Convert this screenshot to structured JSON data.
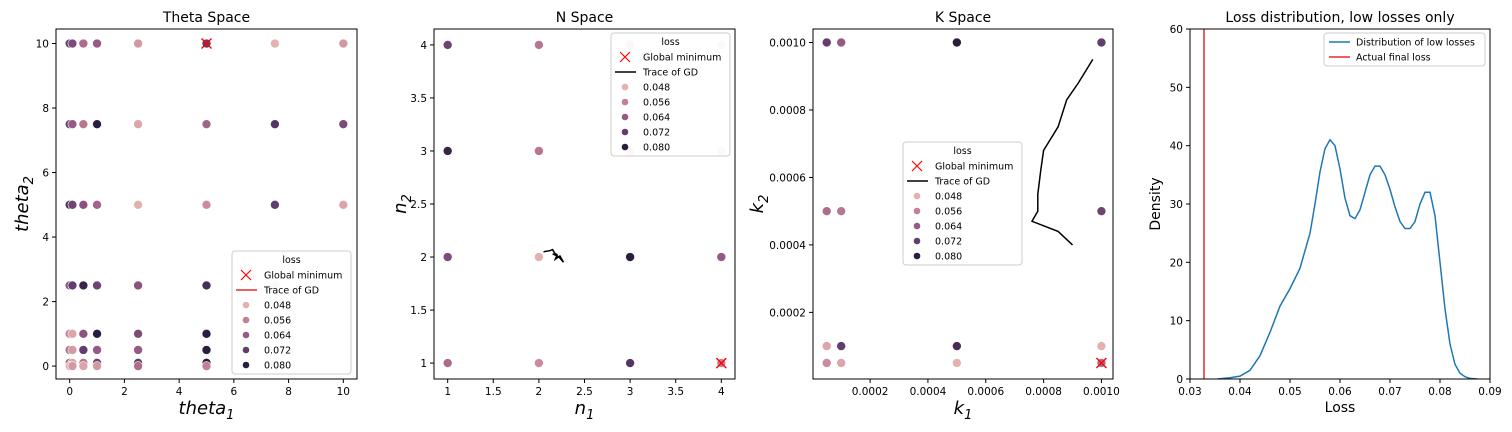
{
  "colors": {
    "axis": "#000000",
    "gd_trace_theta": "#e32b2b",
    "gd_trace": "#000000",
    "global_minimum": "#ff0000",
    "kde_line": "#1f77b4",
    "final_loss_line": "#e32b2b",
    "loss_palette": [
      "#e3b2b0",
      "#c27f95",
      "#955a85",
      "#613e6b",
      "#2b1d3d"
    ]
  },
  "chart_data": [
    {
      "id": "theta",
      "type": "scatter",
      "title": "Theta Space",
      "xlabel": "theta_1",
      "ylabel": "theta_2",
      "xlim": [
        -0.5,
        10.5
      ],
      "ylim": [
        -0.4,
        10.45
      ],
      "xticks": [
        0,
        2,
        4,
        6,
        8,
        10
      ],
      "yticks": [
        0,
        2,
        4,
        6,
        8,
        10
      ],
      "legend": {
        "title": "loss",
        "position": "lower right",
        "entries": [
          "Global minimum",
          "Trace of GD",
          "0.048",
          "0.056",
          "0.064",
          "0.072",
          "0.080"
        ],
        "line_color": "gd_trace_theta"
      },
      "global_minimum": [
        5,
        10
      ],
      "trace": [],
      "points": [
        [
          0,
          10,
          0.072
        ],
        [
          0.1,
          10,
          0.068
        ],
        [
          0.5,
          10,
          0.06
        ],
        [
          1,
          10,
          0.064
        ],
        [
          2.5,
          10,
          0.052
        ],
        [
          5,
          10,
          0.072
        ],
        [
          7.5,
          10,
          0.048
        ],
        [
          10,
          10,
          0.052
        ],
        [
          0,
          7.5,
          0.072
        ],
        [
          0.1,
          7.5,
          0.064
        ],
        [
          0.5,
          7.5,
          0.058
        ],
        [
          1,
          7.5,
          0.08
        ],
        [
          2.5,
          7.5,
          0.05
        ],
        [
          5,
          7.5,
          0.062
        ],
        [
          7.5,
          7.5,
          0.074
        ],
        [
          10,
          7.5,
          0.068
        ],
        [
          0,
          5,
          0.076
        ],
        [
          0.1,
          5,
          0.07
        ],
        [
          0.5,
          5,
          0.066
        ],
        [
          1,
          5,
          0.062
        ],
        [
          2.5,
          5,
          0.048
        ],
        [
          5,
          5,
          0.054
        ],
        [
          7.5,
          5,
          0.072
        ],
        [
          10,
          5,
          0.05
        ],
        [
          0,
          2.5,
          0.066
        ],
        [
          0.1,
          2.5,
          0.072
        ],
        [
          0.5,
          2.5,
          0.078
        ],
        [
          1,
          2.5,
          0.07
        ],
        [
          2.5,
          2.5,
          0.066
        ],
        [
          5,
          2.5,
          0.076
        ],
        [
          7.5,
          2.5,
          0.048
        ],
        [
          0,
          1,
          0.056
        ],
        [
          0.1,
          1,
          0.05
        ],
        [
          0.5,
          1,
          0.066
        ],
        [
          1,
          1,
          0.08
        ],
        [
          2.5,
          1,
          0.068
        ],
        [
          5,
          1,
          0.08
        ],
        [
          7.5,
          1,
          0.05
        ],
        [
          0,
          0.5,
          0.06
        ],
        [
          0.1,
          0.5,
          0.052
        ],
        [
          0.5,
          0.5,
          0.072
        ],
        [
          1,
          0.5,
          0.064
        ],
        [
          2.5,
          0.5,
          0.064
        ],
        [
          5,
          0.5,
          0.08
        ],
        [
          0,
          0.1,
          0.062
        ],
        [
          0.1,
          0.1,
          0.05
        ],
        [
          0.5,
          0.1,
          0.058
        ],
        [
          1,
          0.1,
          0.07
        ],
        [
          2.5,
          0.1,
          0.072
        ],
        [
          5,
          0.1,
          0.08
        ],
        [
          7.5,
          0.1,
          0.048
        ],
        [
          0,
          0,
          0.048
        ],
        [
          0.1,
          0,
          0.052
        ],
        [
          0.5,
          0,
          0.05
        ],
        [
          1,
          0,
          0.052
        ],
        [
          2.5,
          0,
          0.06
        ],
        [
          5,
          0,
          0.056
        ],
        [
          7.5,
          0,
          0.048
        ]
      ]
    },
    {
      "id": "n",
      "type": "scatter",
      "title": "N Space",
      "xlabel": "n_1",
      "ylabel": "n_2",
      "xlim": [
        0.85,
        4.15
      ],
      "ylim": [
        0.85,
        4.15
      ],
      "xticks": [
        1.0,
        1.5,
        2.0,
        2.5,
        3.0,
        3.5,
        4.0
      ],
      "yticks": [
        1.0,
        1.5,
        2.0,
        2.5,
        3.0,
        3.5,
        4.0
      ],
      "legend": {
        "title": "loss",
        "position": "upper right",
        "entries": [
          "Global minimum",
          "Trace of GD",
          "0.048",
          "0.056",
          "0.064",
          "0.072",
          "0.080"
        ],
        "line_color": "gd_trace"
      },
      "global_minimum": [
        4,
        1
      ],
      "trace": [
        [
          2.05,
          2.05
        ],
        [
          2.12,
          2.06
        ],
        [
          2.15,
          2.07
        ],
        [
          2.17,
          2.04
        ],
        [
          2.2,
          2.02
        ],
        [
          2.18,
          1.98
        ],
        [
          2.23,
          2.01
        ],
        [
          2.27,
          1.95
        ],
        [
          2.22,
          2.0
        ],
        [
          2.15,
          2.03
        ]
      ],
      "points": [
        [
          1,
          4,
          0.07
        ],
        [
          2,
          4,
          0.058
        ],
        [
          3,
          4,
          0.048
        ],
        [
          4,
          4,
          0.048
        ],
        [
          1,
          3,
          0.078
        ],
        [
          2,
          3,
          0.058
        ],
        [
          3,
          3,
          0.048
        ],
        [
          4,
          3,
          0.048
        ],
        [
          1,
          2,
          0.068
        ],
        [
          2,
          2,
          0.048
        ],
        [
          3,
          2,
          0.08
        ],
        [
          4,
          2,
          0.064
        ],
        [
          1,
          1,
          0.06
        ],
        [
          2,
          1,
          0.054
        ],
        [
          3,
          1,
          0.074
        ],
        [
          4,
          1,
          0.056
        ]
      ]
    },
    {
      "id": "k",
      "type": "scatter",
      "title": "K Space",
      "xlabel": "k_1",
      "ylabel": "k_2",
      "xlim": [
        2.5e-06,
        0.00104
      ],
      "ylim": [
        2.5e-06,
        0.00104
      ],
      "xticks": [
        0.0002,
        0.0004,
        0.0006,
        0.0008,
        0.001
      ],
      "yticks": [
        0.0002,
        0.0004,
        0.0006,
        0.0008,
        0.001
      ],
      "tick_labels": [
        "0.0002",
        "0.0004",
        "0.0006",
        "0.0008",
        "0.0010"
      ],
      "legend": {
        "title": "loss",
        "position": "center",
        "entries": [
          "Global minimum",
          "Trace of GD",
          "0.048",
          "0.056",
          "0.064",
          "0.072",
          "0.080"
        ],
        "line_color": "gd_trace"
      },
      "global_minimum": [
        0.001,
        5e-05
      ],
      "trace": [
        [
          0.00097,
          0.00095
        ],
        [
          0.00092,
          0.00088
        ],
        [
          0.00088,
          0.00083
        ],
        [
          0.00085,
          0.00075
        ],
        [
          0.0008,
          0.00068
        ],
        [
          0.00079,
          0.00062
        ],
        [
          0.00078,
          0.00055
        ],
        [
          0.00078,
          0.0005
        ],
        [
          0.00076,
          0.00047
        ],
        [
          0.00085,
          0.00044
        ],
        [
          0.0009,
          0.0004
        ]
      ],
      "points": [
        [
          5e-05,
          0.001,
          0.072
        ],
        [
          0.0001,
          0.001,
          0.064
        ],
        [
          0.0005,
          0.001,
          0.08
        ],
        [
          0.001,
          0.001,
          0.072
        ],
        [
          5e-05,
          0.0005,
          0.06
        ],
        [
          0.0001,
          0.0005,
          0.058
        ],
        [
          0.001,
          0.0005,
          0.07
        ],
        [
          5e-05,
          0.0001,
          0.05
        ],
        [
          0.0001,
          0.0001,
          0.072
        ],
        [
          0.0005,
          0.0001,
          0.076
        ],
        [
          0.001,
          0.0001,
          0.048
        ],
        [
          5e-05,
          5e-05,
          0.054
        ],
        [
          0.0001,
          5e-05,
          0.05
        ],
        [
          0.0005,
          5e-05,
          0.048
        ],
        [
          0.001,
          5e-05,
          0.06
        ]
      ]
    },
    {
      "id": "loss",
      "type": "line",
      "title": "Loss distribution, low losses only",
      "xlabel": "Loss",
      "ylabel": "Density",
      "xlim": [
        0.03,
        0.09
      ],
      "ylim": [
        0,
        60
      ],
      "xticks": [
        0.03,
        0.04,
        0.05,
        0.06,
        0.07,
        0.08,
        0.09
      ],
      "xtick_labels": [
        "0.03",
        "0.04",
        "0.05",
        "0.06",
        "0.07",
        "0.08",
        "0.09"
      ],
      "yticks": [
        0,
        10,
        20,
        30,
        40,
        50,
        60
      ],
      "legend": {
        "position": "upper right",
        "entries": [
          "Distribution of low losses",
          "Actual final loss"
        ]
      },
      "final_loss": 0.0328,
      "series": [
        {
          "name": "Distribution of low losses",
          "x": [
            0.0355,
            0.038,
            0.04,
            0.042,
            0.044,
            0.046,
            0.048,
            0.05,
            0.052,
            0.054,
            0.055,
            0.056,
            0.057,
            0.058,
            0.059,
            0.06,
            0.061,
            0.062,
            0.063,
            0.064,
            0.065,
            0.066,
            0.067,
            0.068,
            0.069,
            0.07,
            0.071,
            0.072,
            0.073,
            0.074,
            0.075,
            0.076,
            0.077,
            0.078,
            0.079,
            0.08,
            0.081,
            0.082,
            0.083,
            0.084,
            0.085,
            0.086,
            0.0875
          ],
          "y": [
            0,
            0.2,
            0.5,
            1.5,
            4,
            8,
            12.5,
            15.5,
            19,
            25,
            30,
            35.5,
            39.5,
            41,
            40,
            36,
            31,
            28,
            27.5,
            29,
            32,
            35,
            36.5,
            36.5,
            35,
            32.5,
            29.5,
            27,
            25.8,
            25.8,
            27,
            30,
            32,
            32,
            28,
            20,
            12,
            6,
            2.5,
            1,
            0.4,
            0.1,
            0
          ]
        }
      ]
    }
  ]
}
